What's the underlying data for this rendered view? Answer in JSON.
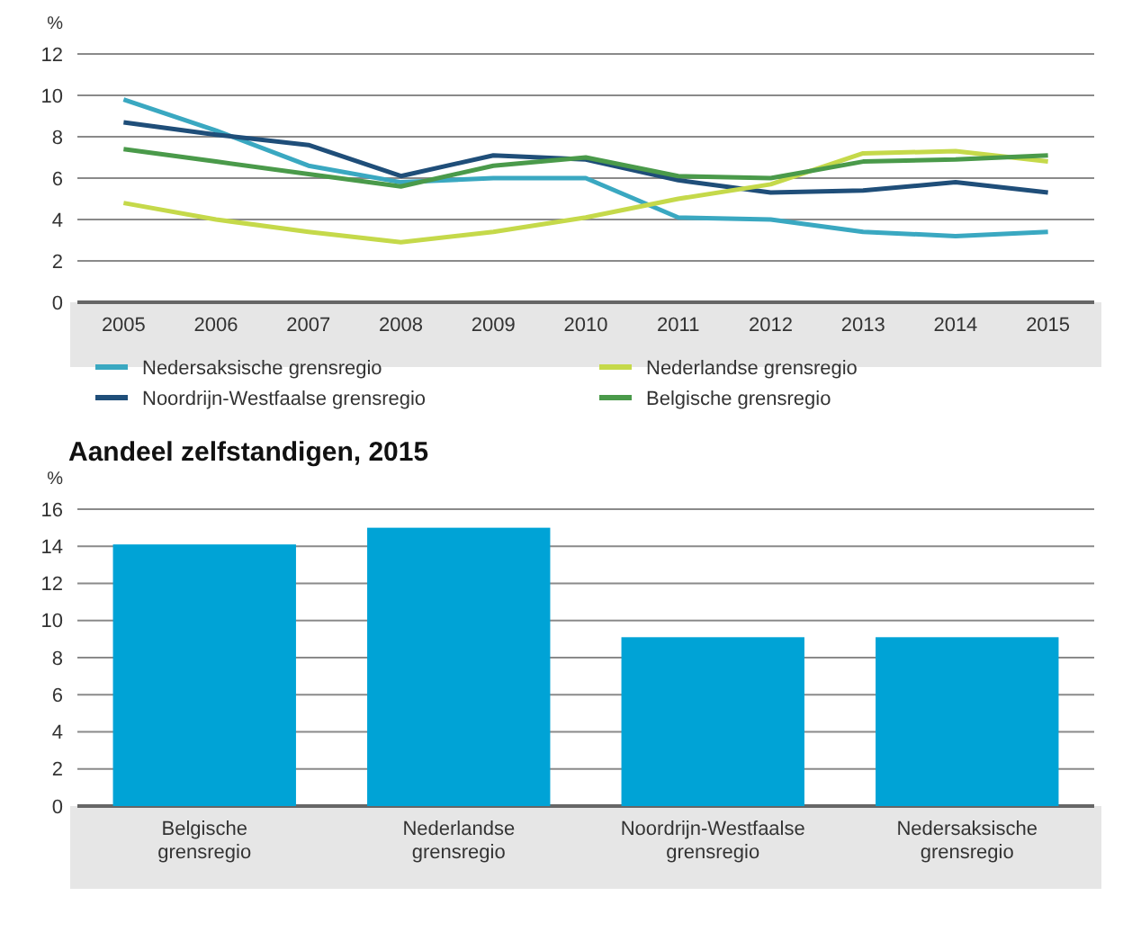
{
  "chart_data": [
    {
      "type": "line",
      "ylabel": "%",
      "categories": [
        "2005",
        "2006",
        "2007",
        "2008",
        "2009",
        "2010",
        "2011",
        "2012",
        "2013",
        "2014",
        "2015"
      ],
      "ylim": [
        0,
        12
      ],
      "yticks": [
        0,
        2,
        4,
        6,
        8,
        10,
        12
      ],
      "grid": "y",
      "legend": "bottom",
      "line_style": "solid",
      "series": [
        {
          "name": "Nedersaksische grensregio",
          "color": "#3aa8c1",
          "values": [
            9.8,
            8.3,
            6.6,
            5.8,
            6.0,
            6.0,
            4.1,
            4.0,
            3.4,
            3.2,
            3.4
          ]
        },
        {
          "name": "Noordrijn-Westfaalse grensregio",
          "color": "#1f4e79",
          "values": [
            8.7,
            8.1,
            7.6,
            6.1,
            7.1,
            6.9,
            5.9,
            5.3,
            5.4,
            5.8,
            5.3
          ]
        },
        {
          "name": "Nederlandse grensregio",
          "color": "#c5d94a",
          "values": [
            4.8,
            4.0,
            3.4,
            2.9,
            3.4,
            4.1,
            5.0,
            5.7,
            7.2,
            7.3,
            6.8
          ]
        },
        {
          "name": "Belgische grensregio",
          "color": "#4a9a4a",
          "values": [
            7.4,
            6.8,
            6.2,
            5.6,
            6.6,
            7.0,
            6.1,
            6.0,
            6.8,
            6.9,
            7.1
          ]
        }
      ]
    },
    {
      "type": "bar",
      "title": "Aandeel zelfstandigen, 2015",
      "ylabel": "%",
      "categories": [
        "Belgische grensregio",
        "Nederlandse grensregio",
        "Noordrijn-Westfaalse grensregio",
        "Nedersaksische grensregio"
      ],
      "values": [
        14.1,
        15.0,
        9.1,
        9.1
      ],
      "color": "#00a3d6",
      "ylim": [
        0,
        16
      ],
      "yticks": [
        0,
        2,
        4,
        6,
        8,
        10,
        12,
        14,
        16
      ],
      "grid": "y"
    }
  ]
}
